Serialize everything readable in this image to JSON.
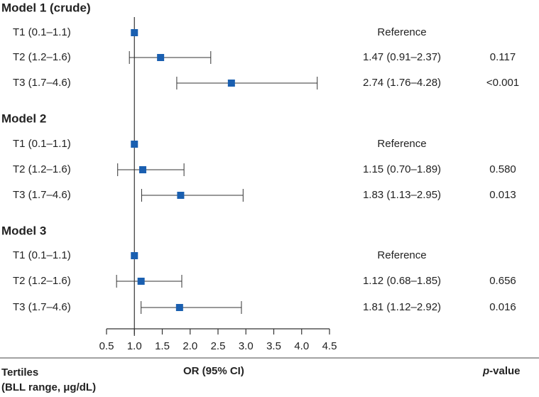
{
  "chart_data": {
    "type": "forest",
    "models": [
      {
        "title": "Model 1 (crude)",
        "rows": [
          {
            "label": "T1 (0.1–1.1)",
            "or": 1.0,
            "lo": 1.0,
            "hi": 1.0,
            "or_text": "Reference",
            "p": ""
          },
          {
            "label": "T2 (1.2–1.6)",
            "or": 1.47,
            "lo": 0.91,
            "hi": 2.37,
            "or_text": "1.47 (0.91–2.37)",
            "p": "0.117"
          },
          {
            "label": "T3 (1.7–4.6)",
            "or": 2.74,
            "lo": 1.76,
            "hi": 4.28,
            "or_text": "2.74 (1.76–4.28)",
            "p": "<0.001"
          }
        ]
      },
      {
        "title": "Model 2",
        "rows": [
          {
            "label": "T1 (0.1–1.1)",
            "or": 1.0,
            "lo": 1.0,
            "hi": 1.0,
            "or_text": "Reference",
            "p": ""
          },
          {
            "label": "T2 (1.2–1.6)",
            "or": 1.15,
            "lo": 0.7,
            "hi": 1.89,
            "or_text": "1.15 (0.70–1.89)",
            "p": "0.580"
          },
          {
            "label": "T3 (1.7–4.6)",
            "or": 1.83,
            "lo": 1.13,
            "hi": 2.95,
            "or_text": "1.83 (1.13–2.95)",
            "p": "0.013"
          }
        ]
      },
      {
        "title": "Model 3",
        "rows": [
          {
            "label": "T1 (0.1–1.1)",
            "or": 1.0,
            "lo": 1.0,
            "hi": 1.0,
            "or_text": "Reference",
            "p": ""
          },
          {
            "label": "T2 (1.2–1.6)",
            "or": 1.12,
            "lo": 0.68,
            "hi": 1.85,
            "or_text": "1.12 (0.68–1.85)",
            "p": "0.656"
          },
          {
            "label": "T3 (1.7–4.6)",
            "or": 1.81,
            "lo": 1.12,
            "hi": 2.92,
            "or_text": "1.81 (1.12–2.92)",
            "p": "0.016"
          }
        ]
      }
    ],
    "xlim": [
      0.5,
      4.5
    ],
    "xticks": [
      "0.5",
      "1.0",
      "1.5",
      "2.0",
      "2.5",
      "3.0",
      "3.5",
      "4.0",
      "4.5"
    ],
    "reference_value": 1.0,
    "marker_color": "#1a5fb0",
    "columns": {
      "tertiles_line1": "Tertiles",
      "tertiles_line2": "(BLL range, μg/dL)",
      "or_header": "OR (95% CI)",
      "p_header_italic": "p",
      "p_header_rest": "-value"
    }
  }
}
